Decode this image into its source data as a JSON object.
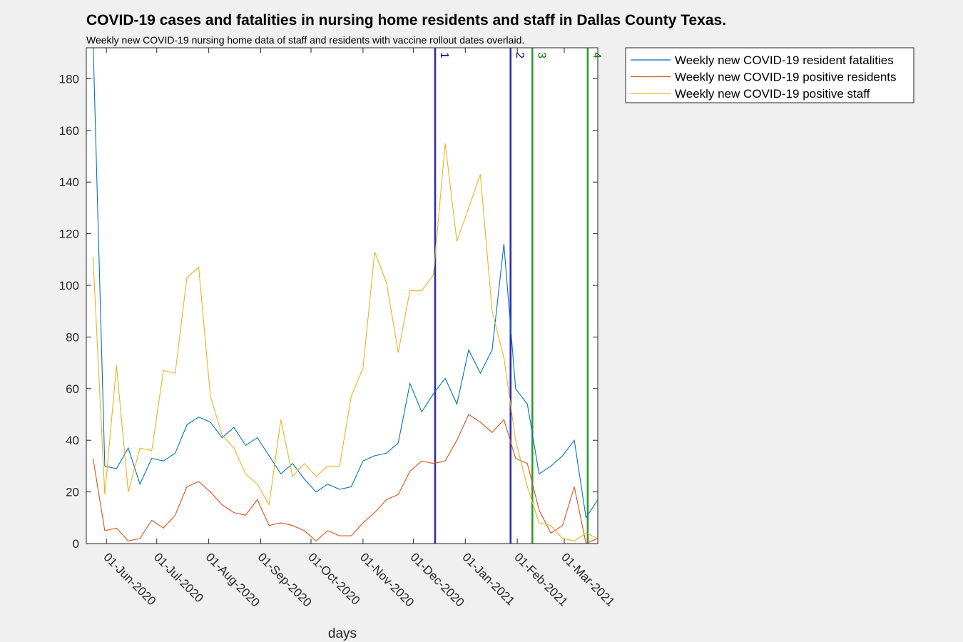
{
  "chart_data": {
    "type": "line",
    "title": "COVID-19 cases and fatalities in nursing home residents and staff in Dallas County Texas.",
    "subtitle": "Weekly new COVID-19 nursing home data of staff and residents with vaccine rollout dates overlaid.",
    "xlabel": "days",
    "ylabel": "",
    "ylim": [
      0,
      192
    ],
    "xlim": [
      "2020-05-20",
      "2021-03-21"
    ],
    "grid": false,
    "legend": "outside-top-right",
    "yticks": [
      0,
      20,
      40,
      60,
      80,
      100,
      120,
      140,
      160,
      180
    ],
    "xticks": [
      {
        "date": "2020-06-01",
        "label": "01-Jun-2020"
      },
      {
        "date": "2020-07-01",
        "label": "01-Jul-2020"
      },
      {
        "date": "2020-08-01",
        "label": "01-Aug-2020"
      },
      {
        "date": "2020-09-01",
        "label": "01-Sep-2020"
      },
      {
        "date": "2020-10-01",
        "label": "01-Oct-2020"
      },
      {
        "date": "2020-11-01",
        "label": "01-Nov-2020"
      },
      {
        "date": "2020-12-01",
        "label": "01-Dec-2020"
      },
      {
        "date": "2021-01-01",
        "label": "01-Jan-2021"
      },
      {
        "date": "2021-02-01",
        "label": "01-Feb-2021"
      },
      {
        "date": "2021-03-01",
        "label": "01-Mar-2021"
      }
    ],
    "x": [
      "2020-05-24",
      "2020-05-31",
      "2020-06-07",
      "2020-06-14",
      "2020-06-21",
      "2020-06-28",
      "2020-07-05",
      "2020-07-12",
      "2020-07-19",
      "2020-07-26",
      "2020-08-02",
      "2020-08-09",
      "2020-08-16",
      "2020-08-23",
      "2020-08-30",
      "2020-09-06",
      "2020-09-13",
      "2020-09-20",
      "2020-09-27",
      "2020-10-04",
      "2020-10-11",
      "2020-10-18",
      "2020-10-25",
      "2020-11-01",
      "2020-11-08",
      "2020-11-15",
      "2020-11-22",
      "2020-11-29",
      "2020-12-06",
      "2020-12-13",
      "2020-12-20",
      "2020-12-27",
      "2021-01-03",
      "2021-01-10",
      "2021-01-17",
      "2021-01-24",
      "2021-01-31",
      "2021-02-07",
      "2021-02-14",
      "2021-02-21",
      "2021-02-28",
      "2021-03-07",
      "2021-03-14",
      "2021-03-21"
    ],
    "series": [
      {
        "name": "Weekly new COVID-19 resident fatalities",
        "color": "#0072BD",
        "values": [
          195,
          30,
          29,
          37,
          23,
          33,
          32,
          35,
          46,
          49,
          47,
          41,
          45,
          38,
          41,
          34,
          27,
          31,
          25,
          20,
          23,
          21,
          22,
          32,
          34,
          35,
          39,
          62,
          51,
          58,
          64,
          54,
          75,
          66,
          75,
          116,
          60,
          54,
          27,
          30,
          34,
          40,
          10,
          17
        ]
      },
      {
        "name": "Weekly new COVID-19 positive residents",
        "color": "#D95319",
        "values": [
          33,
          5,
          6,
          1,
          2,
          9,
          6,
          11,
          22,
          24,
          20,
          15,
          12,
          11,
          17,
          7,
          8,
          7,
          5,
          1,
          5,
          3,
          3,
          8,
          12,
          17,
          19,
          28,
          32,
          31,
          32,
          40,
          50,
          47,
          43,
          48,
          33,
          31,
          13,
          4,
          7,
          22,
          0,
          2
        ]
      },
      {
        "name": "Weekly new COVID-19 positive staff",
        "color": "#EDB120",
        "values": [
          111,
          19,
          69,
          20,
          37,
          36,
          67,
          66,
          103,
          107,
          57,
          42,
          37,
          27,
          23,
          15,
          48,
          26,
          31,
          26,
          30,
          30,
          57,
          68,
          113,
          101,
          74,
          98,
          98,
          104,
          155,
          117,
          130,
          143,
          90,
          72,
          40,
          22,
          8,
          7,
          2,
          1,
          4,
          2
        ]
      }
    ],
    "vlines": [
      {
        "date": "2020-12-14",
        "label": "1",
        "color": "#2B2BB5",
        "text_color": "#00008B"
      },
      {
        "date": "2021-01-28",
        "label": "2",
        "color": "#2B2BB5",
        "text_color": "#00008B"
      },
      {
        "date": "2021-02-10",
        "label": "3",
        "color": "#2E9B2E",
        "text_color": "#007A00"
      },
      {
        "date": "2021-03-15",
        "label": "4",
        "color": "#2E9B2E",
        "text_color": "#007A00"
      }
    ]
  }
}
